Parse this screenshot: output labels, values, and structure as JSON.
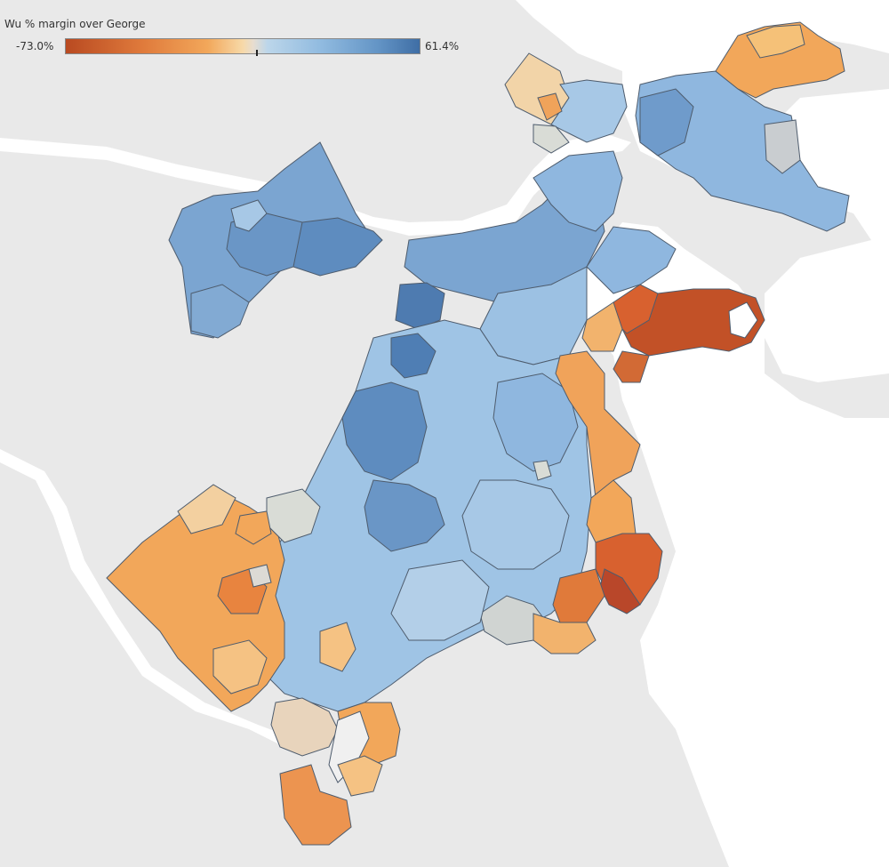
{
  "legend": {
    "title": "Wu % margin over George",
    "min_label": "-73.0%",
    "max_label": "61.4%",
    "min_value": -73.0,
    "max_value": 61.4
  },
  "colors": {
    "water": "#ffffff",
    "land": "#e9e9e9",
    "strong_wu": "#4a76ae",
    "wu": "#6f9bcb",
    "lean_wu": "#a7c8e6",
    "tossup": "#d9dcd6",
    "lean_george": "#f1d2a4",
    "george": "#f0a35a",
    "strong_george": "#d8612f",
    "max_george": "#b8492c"
  }
}
